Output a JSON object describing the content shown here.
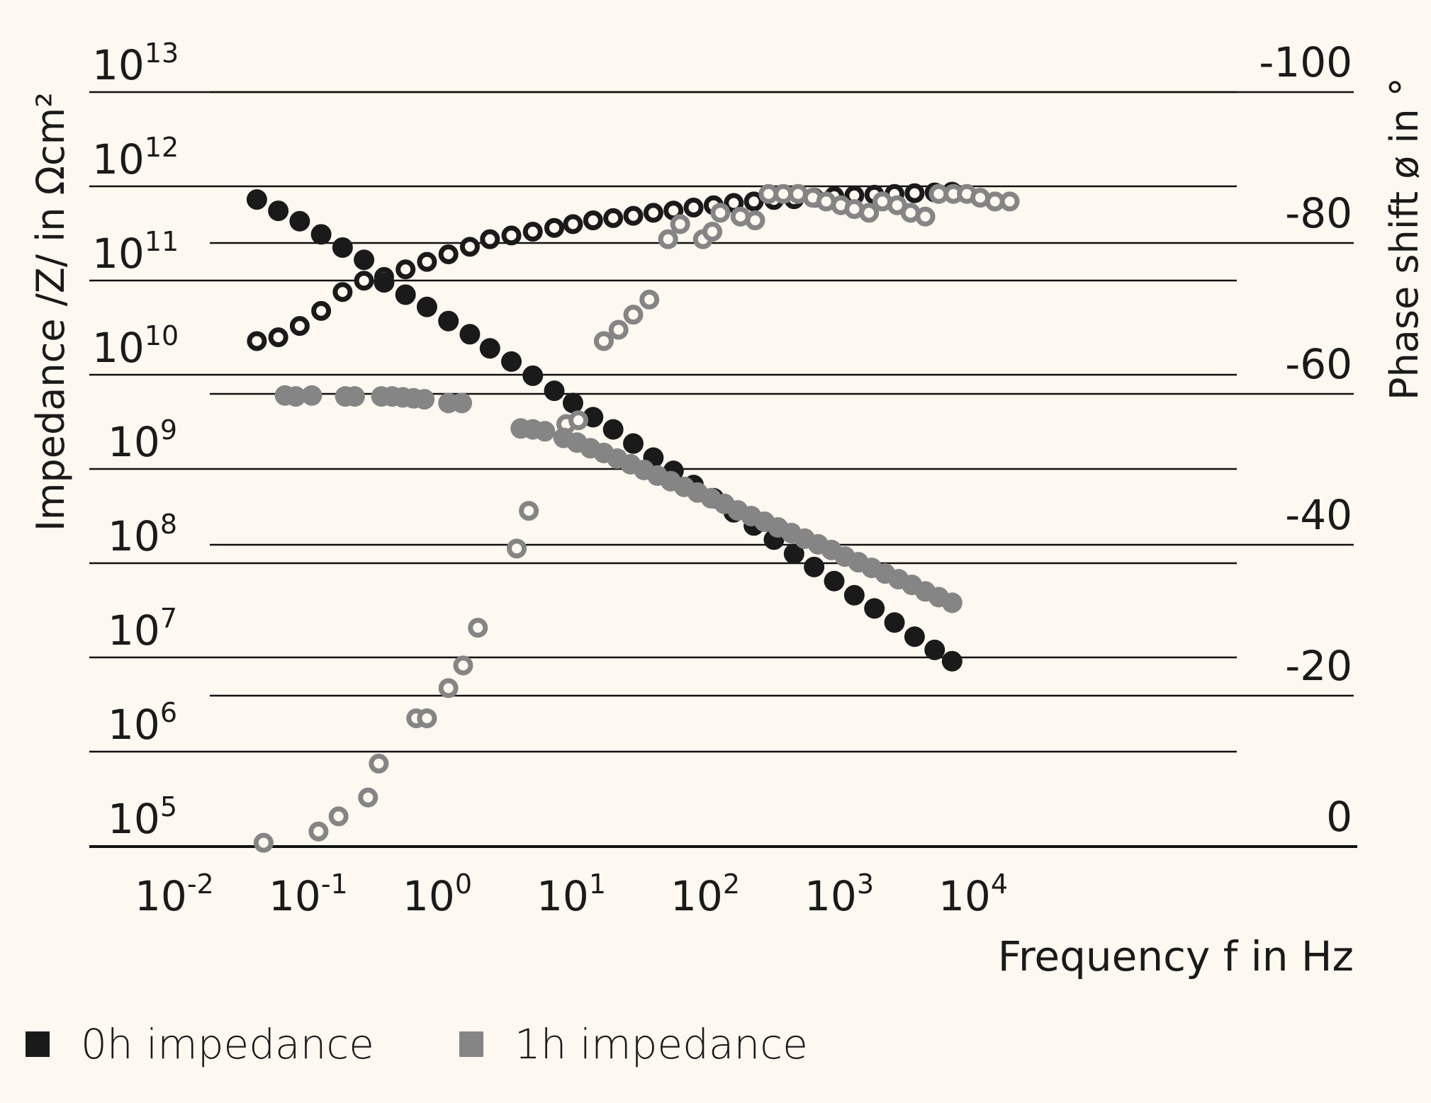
{
  "chart_data": {
    "type": "scatter",
    "title": "",
    "xlabel": "Frequency f in Hz",
    "ylabel_left": "Impedance /Z/ in Ωcm²",
    "ylabel_right": "Phase shift ø in °",
    "x_scale": "log",
    "x_ticks": [
      {
        "base": "10",
        "exp": "-2",
        "value": -2
      },
      {
        "base": "10",
        "exp": "-1",
        "value": -1
      },
      {
        "base": "10",
        "exp": "0",
        "value": 0
      },
      {
        "base": "10",
        "exp": "1",
        "value": 1
      },
      {
        "base": "10",
        "exp": "2",
        "value": 2
      },
      {
        "base": "10",
        "exp": "3",
        "value": 3
      },
      {
        "base": "10",
        "exp": "4",
        "value": 4
      }
    ],
    "y_left_scale": "log",
    "y_left_ticks": [
      {
        "base": "10",
        "exp": "13",
        "value": 13
      },
      {
        "base": "10",
        "exp": "12",
        "value": 12
      },
      {
        "base": "10",
        "exp": "11",
        "value": 11
      },
      {
        "base": "10",
        "exp": "10",
        "value": 10
      },
      {
        "base": "10",
        "exp": "9",
        "value": 9
      },
      {
        "base": "10",
        "exp": "8",
        "value": 8
      },
      {
        "base": "10",
        "exp": "7",
        "value": 7
      },
      {
        "base": "10",
        "exp": "6",
        "value": 6
      },
      {
        "base": "10",
        "exp": "5",
        "value": 5
      }
    ],
    "y_right_ticks": [
      "-100",
      "-80",
      "-60",
      "-40",
      "-20",
      "0"
    ],
    "y_right_range": [
      0,
      -100
    ],
    "grid": true,
    "legend_position": "bottom-left",
    "legend": [
      {
        "label": "0h impedance",
        "color": "#1a1a1a"
      },
      {
        "label": "1h impedance",
        "color": "#858585"
      }
    ],
    "series": [
      {
        "name": "0h impedance |Z|",
        "marker": "filled",
        "color": "#1a1a1a",
        "axis": "left",
        "points_log10f_log10Z": [
          [
            -1.31,
            11.86
          ],
          [
            -1.15,
            11.74
          ],
          [
            -0.99,
            11.63
          ],
          [
            -0.83,
            11.49
          ],
          [
            -0.67,
            11.35
          ],
          [
            -0.51,
            11.22
          ],
          [
            -0.36,
            10.98
          ],
          [
            -0.2,
            10.85
          ],
          [
            -0.04,
            10.72
          ],
          [
            0.12,
            10.57
          ],
          [
            0.28,
            10.43
          ],
          [
            0.43,
            10.28
          ],
          [
            0.59,
            10.14
          ],
          [
            0.75,
            9.99
          ],
          [
            0.91,
            9.83
          ],
          [
            1.05,
            9.7
          ],
          [
            1.2,
            9.55
          ],
          [
            1.35,
            9.42
          ],
          [
            1.5,
            9.27
          ],
          [
            1.65,
            9.12
          ],
          [
            1.8,
            8.98
          ],
          [
            1.95,
            8.83
          ],
          [
            2.1,
            8.69
          ],
          [
            2.25,
            8.54
          ],
          [
            2.4,
            8.4
          ],
          [
            2.55,
            8.25
          ],
          [
            2.7,
            8.1
          ],
          [
            2.85,
            7.96
          ],
          [
            3.0,
            7.81
          ],
          [
            3.15,
            7.66
          ],
          [
            3.3,
            7.52
          ],
          [
            3.45,
            7.37
          ],
          [
            3.6,
            7.22
          ],
          [
            3.75,
            7.08
          ],
          [
            3.88,
            6.96
          ]
        ]
      },
      {
        "name": "0h impedance phase",
        "marker": "ring",
        "color": "#1a1a1a",
        "axis": "right",
        "points_log10f_phase": [
          [
            -1.31,
            -67
          ],
          [
            -1.15,
            -67.5
          ],
          [
            -0.99,
            -69
          ],
          [
            -0.83,
            -71
          ],
          [
            -0.67,
            -73.5
          ],
          [
            -0.51,
            -75
          ],
          [
            -0.36,
            -75.5
          ],
          [
            -0.2,
            -76.5
          ],
          [
            -0.04,
            -77.5
          ],
          [
            0.12,
            -78.5
          ],
          [
            0.28,
            -79.5
          ],
          [
            0.43,
            -80.5
          ],
          [
            0.59,
            -81
          ],
          [
            0.75,
            -81.5
          ],
          [
            0.91,
            -82
          ],
          [
            1.05,
            -82.5
          ],
          [
            1.2,
            -83
          ],
          [
            1.35,
            -83.3
          ],
          [
            1.5,
            -83.6
          ],
          [
            1.65,
            -84
          ],
          [
            1.8,
            -84.3
          ],
          [
            1.95,
            -84.7
          ],
          [
            2.1,
            -85
          ],
          [
            2.25,
            -85.3
          ],
          [
            2.4,
            -85.5
          ],
          [
            2.55,
            -85.7
          ],
          [
            2.7,
            -85.8
          ],
          [
            2.85,
            -86
          ],
          [
            3.0,
            -86.2
          ],
          [
            3.15,
            -86.3
          ],
          [
            3.3,
            -86.4
          ],
          [
            3.45,
            -86.5
          ],
          [
            3.6,
            -86.6
          ],
          [
            3.75,
            -86.7
          ],
          [
            3.88,
            -86.8
          ]
        ]
      },
      {
        "name": "1h impedance |Z|",
        "marker": "filled",
        "color": "#858585",
        "axis": "left",
        "points_log10f_log10Z": [
          [
            -1.1,
            9.78
          ],
          [
            -1.02,
            9.77
          ],
          [
            -0.9,
            9.78
          ],
          [
            -0.65,
            9.77
          ],
          [
            -0.58,
            9.77
          ],
          [
            -0.38,
            9.77
          ],
          [
            -0.3,
            9.77
          ],
          [
            -0.22,
            9.76
          ],
          [
            -0.14,
            9.75
          ],
          [
            -0.06,
            9.74
          ],
          [
            0.12,
            9.7
          ],
          [
            0.22,
            9.7
          ],
          [
            0.66,
            9.43
          ],
          [
            0.75,
            9.42
          ],
          [
            0.84,
            9.4
          ],
          [
            0.98,
            9.33
          ],
          [
            1.08,
            9.28
          ],
          [
            1.18,
            9.22
          ],
          [
            1.28,
            9.17
          ],
          [
            1.38,
            9.11
          ],
          [
            1.48,
            9.05
          ],
          [
            1.58,
            8.99
          ],
          [
            1.68,
            8.93
          ],
          [
            1.78,
            8.87
          ],
          [
            1.88,
            8.81
          ],
          [
            1.98,
            8.75
          ],
          [
            2.08,
            8.69
          ],
          [
            2.18,
            8.63
          ],
          [
            2.28,
            8.56
          ],
          [
            2.38,
            8.5
          ],
          [
            2.48,
            8.44
          ],
          [
            2.58,
            8.38
          ],
          [
            2.68,
            8.32
          ],
          [
            2.78,
            8.26
          ],
          [
            2.88,
            8.2
          ],
          [
            2.98,
            8.14
          ],
          [
            3.08,
            8.07
          ],
          [
            3.18,
            8.01
          ],
          [
            3.28,
            7.95
          ],
          [
            3.38,
            7.89
          ],
          [
            3.48,
            7.83
          ],
          [
            3.58,
            7.77
          ],
          [
            3.68,
            7.7
          ],
          [
            3.78,
            7.64
          ],
          [
            3.88,
            7.58
          ]
        ]
      },
      {
        "name": "1h impedance phase",
        "marker": "ring",
        "color": "#858585",
        "axis": "right",
        "points_log10f_phase": [
          [
            -1.26,
            0.5
          ],
          [
            -0.85,
            -2
          ],
          [
            -0.7,
            -4
          ],
          [
            -0.48,
            -6.5
          ],
          [
            -0.4,
            -11
          ],
          [
            -0.12,
            -17
          ],
          [
            -0.04,
            -17
          ],
          [
            0.12,
            -21
          ],
          [
            0.23,
            -24
          ],
          [
            0.34,
            -29
          ],
          [
            0.63,
            -39.5
          ],
          [
            0.72,
            -44.5
          ],
          [
            1.0,
            -56
          ],
          [
            1.09,
            -56.5
          ],
          [
            1.28,
            -67
          ],
          [
            1.39,
            -68.5
          ],
          [
            1.5,
            -70.5
          ],
          [
            1.62,
            -72.5
          ],
          [
            1.76,
            -80.5
          ],
          [
            1.85,
            -82.5
          ],
          [
            2.02,
            -80.5
          ],
          [
            2.09,
            -81.5
          ],
          [
            2.15,
            -84
          ],
          [
            2.3,
            -83.5
          ],
          [
            2.41,
            -83
          ],
          [
            2.51,
            -86.5
          ],
          [
            2.62,
            -86.5
          ],
          [
            2.73,
            -86.5
          ],
          [
            2.84,
            -86
          ],
          [
            2.94,
            -85.5
          ],
          [
            3.05,
            -85
          ],
          [
            3.15,
            -84.5
          ],
          [
            3.26,
            -84
          ],
          [
            3.36,
            -85.5
          ],
          [
            3.47,
            -85
          ],
          [
            3.57,
            -84
          ],
          [
            3.68,
            -83.5
          ],
          [
            3.78,
            -86.5
          ],
          [
            3.89,
            -86.5
          ],
          [
            3.99,
            -86.5
          ],
          [
            4.09,
            -86
          ],
          [
            4.2,
            -85.5
          ],
          [
            4.31,
            -85.5
          ]
        ]
      }
    ]
  }
}
